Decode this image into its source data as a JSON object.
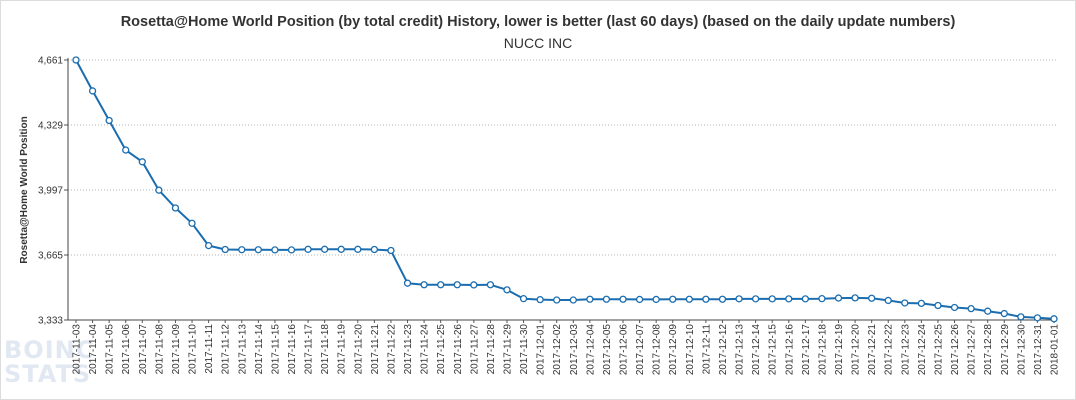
{
  "chart_data": {
    "type": "line",
    "title": "Rosetta@Home World Position (by total credit) History, lower is better (last 60 days) (based on the daily update numbers)",
    "subtitle": "NUCC INC",
    "xlabel": "",
    "ylabel": "Rosetta@Home World Position",
    "y_ticks": [
      "4,661",
      "4,329",
      "3,997",
      "3,665",
      "3,333"
    ],
    "ylim": [
      3333,
      4661
    ],
    "grid": "horizontal dotted",
    "legend": "none",
    "series_color": "#1a6db0",
    "categories": [
      "2017-11-03",
      "2017-11-04",
      "2017-11-05",
      "2017-11-06",
      "2017-11-07",
      "2017-11-08",
      "2017-11-09",
      "2017-11-10",
      "2017-11-11",
      "2017-11-12",
      "2017-11-13",
      "2017-11-14",
      "2017-11-15",
      "2017-11-16",
      "2017-11-17",
      "2017-11-18",
      "2017-11-19",
      "2017-11-20",
      "2017-11-21",
      "2017-11-22",
      "2017-11-23",
      "2017-11-24",
      "2017-11-25",
      "2017-11-26",
      "2017-11-27",
      "2017-11-28",
      "2017-11-29",
      "2017-11-30",
      "2017-12-01",
      "2017-12-02",
      "2017-12-03",
      "2017-12-04",
      "2017-12-05",
      "2017-12-06",
      "2017-12-07",
      "2017-12-08",
      "2017-12-09",
      "2017-12-10",
      "2017-12-11",
      "2017-12-12",
      "2017-12-13",
      "2017-12-14",
      "2017-12-15",
      "2017-12-16",
      "2017-12-17",
      "2017-12-18",
      "2017-12-19",
      "2017-12-20",
      "2017-12-21",
      "2017-12-22",
      "2017-12-23",
      "2017-12-24",
      "2017-12-25",
      "2017-12-26",
      "2017-12-27",
      "2017-12-28",
      "2017-12-29",
      "2017-12-30",
      "2017-12-31",
      "2018-01-01"
    ],
    "series": [
      {
        "values": [
          4661,
          4503,
          4352,
          4201,
          4141,
          3996,
          3905,
          3827,
          3713,
          3693,
          3692,
          3692,
          3691,
          3691,
          3694,
          3694,
          3694,
          3694,
          3693,
          3688,
          3521,
          3513,
          3513,
          3513,
          3512,
          3513,
          3487,
          3442,
          3437,
          3435,
          3435,
          3439,
          3439,
          3439,
          3438,
          3438,
          3439,
          3439,
          3439,
          3439,
          3441,
          3441,
          3441,
          3441,
          3441,
          3442,
          3445,
          3446,
          3444,
          3433,
          3420,
          3418,
          3407,
          3397,
          3391,
          3378,
          3366,
          3349,
          3344,
          3339
        ]
      }
    ]
  },
  "watermark": {
    "line1": "BOINC",
    "line2": "STATS",
    "color": "#c9d7e8"
  }
}
